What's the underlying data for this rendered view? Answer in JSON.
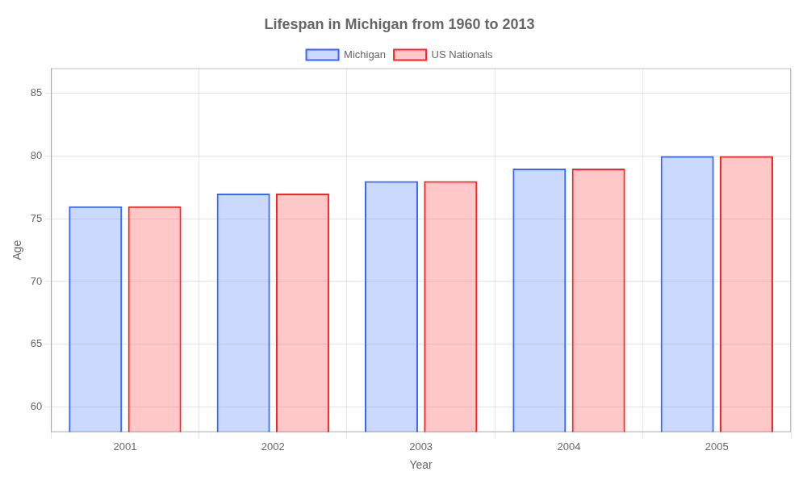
{
  "chart_data": {
    "type": "bar",
    "title": "Lifespan in Michigan from 1960 to 2013",
    "xlabel": "Year",
    "ylabel": "Age",
    "categories": [
      "2001",
      "2002",
      "2003",
      "2004",
      "2005"
    ],
    "series": [
      {
        "name": "Michigan",
        "color": "#3366ff",
        "values": [
          76,
          77,
          78,
          79,
          80
        ]
      },
      {
        "name": "US Nationals",
        "color": "#ff2222",
        "values": [
          76,
          77,
          78,
          79,
          80
        ]
      }
    ],
    "ylim": [
      58,
      87
    ],
    "yticks": [
      60,
      65,
      70,
      75,
      80,
      85
    ],
    "grid": true,
    "legend": "top"
  }
}
